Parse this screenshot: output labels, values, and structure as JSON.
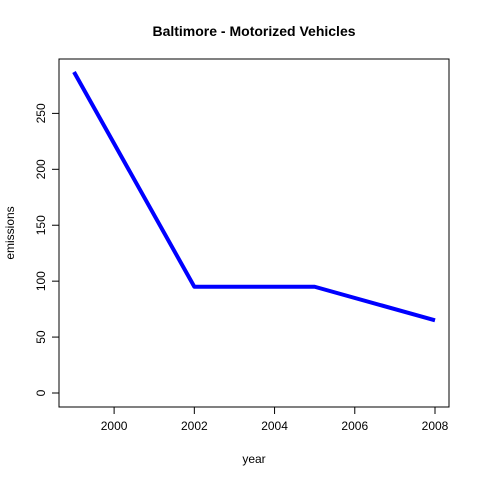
{
  "chart_data": {
    "type": "line",
    "title": "Baltimore - Motorized Vehicles",
    "xlabel": "year",
    "ylabel": "emissions",
    "x": [
      1999,
      2002,
      2005,
      2008
    ],
    "series": [
      {
        "values": [
          287,
          95,
          95,
          65
        ],
        "color": "#0000ff"
      }
    ],
    "xlim": [
      1999,
      2008
    ],
    "ylim": [
      0,
      287
    ],
    "xticks": [
      2000,
      2002,
      2004,
      2006,
      2008
    ],
    "yticks": [
      0,
      50,
      100,
      150,
      200,
      250
    ],
    "grid": false
  }
}
